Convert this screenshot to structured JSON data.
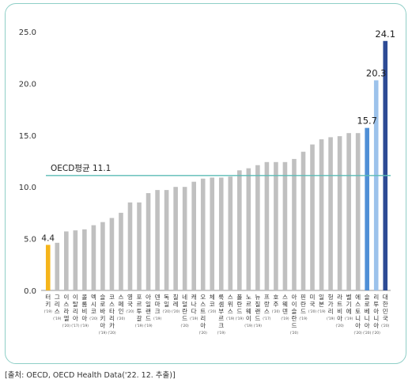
{
  "chart_data": {
    "type": "bar",
    "ylim": [
      0,
      25
    ],
    "yticks": [
      "0.0",
      "5.0",
      "10.0",
      "15.0",
      "20.0",
      "25.0"
    ],
    "reference_line": {
      "label": "OECD평균 11.1",
      "value": 11.1,
      "color": "#5bbcb6"
    },
    "categories": [
      {
        "name": "터키",
        "year": "('19)"
      },
      {
        "name": "그리스",
        "year": "('19)"
      },
      {
        "name": "이스라엘",
        "year": "('20)"
      },
      {
        "name": "이탈리아",
        "year": "('17)"
      },
      {
        "name": "콜롬비아",
        "year": "('19)"
      },
      {
        "name": "멕시코",
        "year": "('20)"
      },
      {
        "name": "슬로바키아",
        "year": "('19)"
      },
      {
        "name": "코스타리카",
        "year": "('20)"
      },
      {
        "name": "스페인",
        "year": "('20)"
      },
      {
        "name": "영국",
        "year": "('20)"
      },
      {
        "name": "포르투갈",
        "year": "('19)"
      },
      {
        "name": "아일랜드",
        "year": "('19)"
      },
      {
        "name": "덴마크",
        "year": "('19)"
      },
      {
        "name": "독일",
        "year": "('20)"
      },
      {
        "name": "칠레",
        "year": "('20)"
      },
      {
        "name": "네덜란드",
        "year": "('20)"
      },
      {
        "name": "캐나다",
        "year": "('19)"
      },
      {
        "name": "오스트리아",
        "year": "('20)"
      },
      {
        "name": "체코",
        "year": "('20)"
      },
      {
        "name": "룩셈부르크",
        "year": "('19)"
      },
      {
        "name": "스위스",
        "year": "('19)"
      },
      {
        "name": "폴란드",
        "year": "('19)"
      },
      {
        "name": "노르웨이",
        "year": "('19)"
      },
      {
        "name": "뉴질랜드",
        "year": "('19)"
      },
      {
        "name": "프랑스",
        "year": "('17)"
      },
      {
        "name": "호주",
        "year": "('20)"
      },
      {
        "name": "스웨덴",
        "year": "('19)"
      },
      {
        "name": "아이슬란드",
        "year": "('20)"
      },
      {
        "name": "핀란드",
        "year": "('19)"
      },
      {
        "name": "미국",
        "year": "('20)"
      },
      {
        "name": "일본",
        "year": "('19)"
      },
      {
        "name": "헝가리",
        "year": "('19)"
      },
      {
        "name": "라트비아",
        "year": "('20)"
      },
      {
        "name": "벨기에",
        "year": "('19)"
      },
      {
        "name": "에스토니아",
        "year": "('20)"
      },
      {
        "name": "슬로베니아",
        "year": "('20)"
      },
      {
        "name": "리투아니아",
        "year": "('20)"
      },
      {
        "name": "대한민국",
        "year": "('20)"
      }
    ],
    "values": [
      4.4,
      4.6,
      5.7,
      5.8,
      5.9,
      6.3,
      6.6,
      7.0,
      7.5,
      8.5,
      8.5,
      9.4,
      9.7,
      9.7,
      10.0,
      10.0,
      10.5,
      10.8,
      10.9,
      10.9,
      11.0,
      11.6,
      11.8,
      12.1,
      12.4,
      12.4,
      12.4,
      12.7,
      13.4,
      14.1,
      14.6,
      14.8,
      14.9,
      15.2,
      15.2,
      15.7,
      20.3,
      24.1
    ],
    "data_labels": [
      {
        "index": 0,
        "text": "4.4"
      },
      {
        "index": 35,
        "text": "15.7"
      },
      {
        "index": 36,
        "text": "20.3"
      },
      {
        "index": 37,
        "text": "24.1"
      }
    ],
    "colors": {
      "default": "#c0c0c0",
      "highlight_low": "#f5b51b",
      "index_35": "#4f8fd6",
      "index_36": "#9cc2eb",
      "index_37": "#2d4b95",
      "axis_line": "#999999",
      "text": "#333333"
    }
  },
  "source": "[출처: OECD, OECD Health Data('22. 12. 추출)]"
}
